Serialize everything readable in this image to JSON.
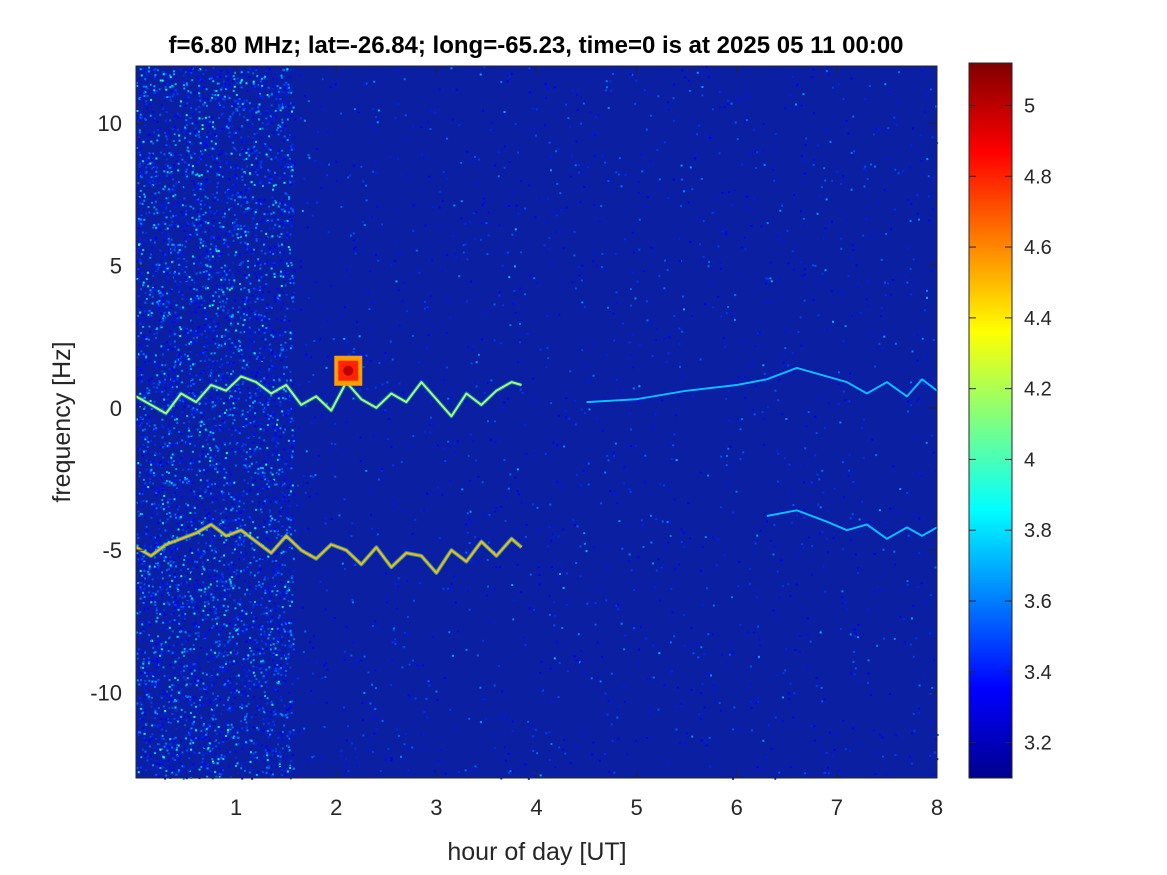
{
  "chart_data": {
    "type": "heatmap",
    "title": "f=6.80 MHz;  lat=-26.84; long=-65.23, time=0 is at 2025 05 11 00:00",
    "xlabel": "hour of day [UT]",
    "ylabel": "frequency [Hz]",
    "xlim": [
      0.0,
      8.0
    ],
    "ylim": [
      -13.0,
      12.0
    ],
    "x_ticks": [
      1,
      2,
      3,
      4,
      5,
      6,
      7,
      8
    ],
    "x_tick_labels": [
      "1",
      "2",
      "3",
      "4",
      "5",
      "6",
      "7",
      "8"
    ],
    "y_ticks": [
      10,
      5,
      0,
      -5,
      -10
    ],
    "y_tick_labels": [
      "10",
      "5",
      "0",
      "-5",
      "-10"
    ],
    "colorbar": {
      "range": [
        3.1,
        5.12
      ],
      "colormap": "jet",
      "ticks": [
        5,
        4.8,
        4.6,
        4.4,
        4.2,
        4,
        3.8,
        3.6,
        3.4,
        3.2
      ],
      "tick_labels": [
        "5",
        "4.8",
        "4.6",
        "4.4",
        "4.2",
        "4",
        "3.8",
        "3.6",
        "3.4",
        "3.2"
      ]
    },
    "background_level": 3.2,
    "noisy_band_hours": [
      0.0,
      1.57
    ],
    "traces": [
      {
        "x": [
          0.0,
          0.15,
          0.3,
          0.45,
          0.6,
          0.75,
          0.9,
          1.05,
          1.2,
          1.35,
          1.5,
          1.65,
          1.8,
          1.95,
          2.1,
          2.25,
          2.4,
          2.55,
          2.7,
          2.85,
          3.0,
          3.15,
          3.3,
          3.45,
          3.6,
          3.75,
          3.85
        ],
        "y": [
          0.4,
          0.1,
          -0.2,
          0.5,
          0.2,
          0.8,
          0.6,
          1.1,
          0.9,
          0.5,
          0.8,
          0.1,
          0.4,
          -0.1,
          0.9,
          0.3,
          0.0,
          0.5,
          0.2,
          0.9,
          0.3,
          -0.3,
          0.5,
          0.1,
          0.6,
          0.9,
          0.8
        ],
        "level": 4.2
      },
      {
        "x": [
          0.0,
          0.15,
          0.3,
          0.45,
          0.6,
          0.75,
          0.9,
          1.05,
          1.2,
          1.35,
          1.5,
          1.65,
          1.8,
          1.95,
          2.1,
          2.25,
          2.4,
          2.55,
          2.7,
          2.85,
          3.0,
          3.15,
          3.3,
          3.45,
          3.6,
          3.75,
          3.85
        ],
        "y": [
          -4.9,
          -5.2,
          -4.8,
          -4.6,
          -4.4,
          -4.1,
          -4.5,
          -4.3,
          -4.7,
          -5.1,
          -4.5,
          -5.0,
          -5.3,
          -4.8,
          -5.0,
          -5.5,
          -4.9,
          -5.6,
          -5.1,
          -5.2,
          -5.8,
          -5.0,
          -5.4,
          -4.7,
          -5.2,
          -4.6,
          -4.9
        ],
        "level": 4.5
      },
      {
        "x": [
          4.5,
          5.0,
          5.5,
          6.0,
          6.3,
          6.6,
          6.9,
          7.1,
          7.3,
          7.5,
          7.7,
          7.85,
          8.0
        ],
        "y": [
          0.2,
          0.3,
          0.6,
          0.8,
          1.0,
          1.4,
          1.1,
          0.9,
          0.5,
          0.9,
          0.4,
          1.0,
          0.6
        ],
        "level": 3.75
      },
      {
        "x": [
          6.3,
          6.6,
          6.9,
          7.1,
          7.3,
          7.5,
          7.7,
          7.85,
          8.0
        ],
        "y": [
          -3.8,
          -3.6,
          -4.0,
          -4.3,
          -4.1,
          -4.6,
          -4.2,
          -4.5,
          -4.2
        ],
        "level": 3.75
      }
    ],
    "hotspot": {
      "x": 2.12,
      "y": 1.3,
      "level": 5.0
    }
  }
}
